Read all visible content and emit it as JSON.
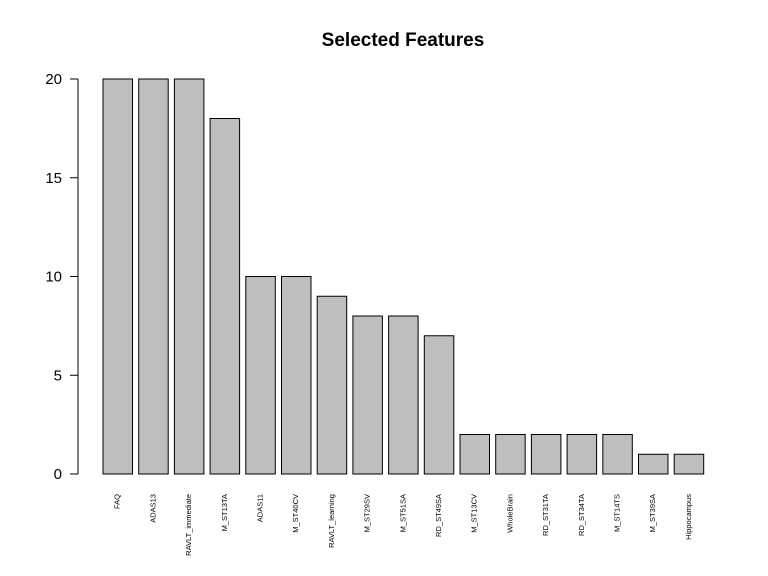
{
  "chart_data": {
    "type": "bar",
    "title": "Selected Features",
    "xlabel": "",
    "ylabel": "",
    "categories": [
      "FAQ",
      "ADAS13",
      "RAVLT_immediate",
      "M_ST13TA",
      "ADAS11",
      "M_ST40CV",
      "RAVLT_learning",
      "M_ST29SV",
      "M_ST51SA",
      "RD_ST49SA",
      "M_ST13CV",
      "WholeBrain",
      "RD_ST31TA",
      "RD_ST34TA",
      "M_ST14TS",
      "M_ST39SA",
      "Hippocampus"
    ],
    "values": [
      20,
      20,
      20,
      18,
      10,
      10,
      9,
      8,
      8,
      7,
      2,
      2,
      2,
      2,
      2,
      1,
      1
    ],
    "yticks": [
      0,
      5,
      10,
      15,
      20
    ],
    "ylim": [
      0,
      20
    ],
    "bar_color": "#bebebe",
    "grid": false
  }
}
